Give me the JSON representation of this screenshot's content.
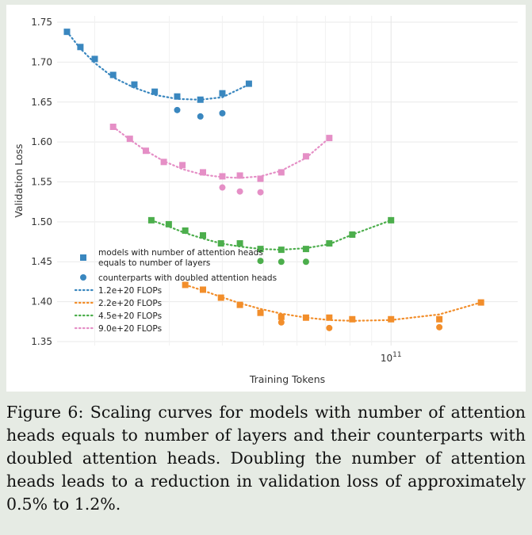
{
  "caption": "Figure 6: Scaling curves for models with number of attention heads equals to number of layers and their counterparts with doubled attention heads. Doubling the number of attention heads leads to a reduction in validation loss of approximately 0.5% to 1.2%.",
  "chart_data": {
    "type": "scatter",
    "xlabel": "Training Tokens",
    "ylabel": "Validation Loss",
    "x_scale": "log",
    "xlim": [
      16300000000.0,
      199000000000.0
    ],
    "ylim": [
      1.345,
      1.758
    ],
    "grid": true,
    "x_ticks": [
      {
        "value": 100000000000.0,
        "label": "10^11"
      }
    ],
    "y_ticks": [
      1.35,
      1.4,
      1.45,
      1.5,
      1.55,
      1.6,
      1.65,
      1.7,
      1.75
    ],
    "y_tick_labels": [
      "1.35",
      "1.40",
      "1.45",
      "1.50",
      "1.55",
      "1.60",
      "1.65",
      "1.70",
      "1.75"
    ],
    "legend": {
      "position": "lower-left",
      "entries": [
        {
          "label": "models with number of attention heads equals to number of layers",
          "lines": [
            "models with number of attention heads",
            "equals to number of layers"
          ],
          "kind": "square"
        },
        {
          "label": "counterparts with doubled attention heads",
          "lines": [
            "counterparts with doubled attention heads"
          ],
          "kind": "circle"
        },
        {
          "label": "1.2e+20 FLOPs",
          "lines": [
            "1.2e+20 FLOPs"
          ],
          "kind": "line",
          "series": 0
        },
        {
          "label": "2.2e+20 FLOPs",
          "lines": [
            "2.2e+20 FLOPs"
          ],
          "kind": "line",
          "series": 1
        },
        {
          "label": "4.5e+20 FLOPs",
          "lines": [
            "4.5e+20 FLOPs"
          ],
          "kind": "line",
          "series": 2
        },
        {
          "label": "9.0e+20 FLOPs",
          "lines": [
            "9.0e+20 FLOPs"
          ],
          "kind": "line",
          "series": 3
        }
      ]
    },
    "series": [
      {
        "name": "1.2e+20 FLOPs",
        "color": "#3a87bf",
        "squares": [
          [
            17200000000.0,
            1.738
          ],
          [
            18500000000.0,
            1.719
          ],
          [
            20000000000.0,
            1.704
          ],
          [
            22100000000.0,
            1.684
          ],
          [
            24800000000.0,
            1.672
          ],
          [
            27700000000.0,
            1.663
          ],
          [
            31300000000.0,
            1.657
          ],
          [
            35500000000.0,
            1.653
          ],
          [
            40000000000.0,
            1.661
          ],
          [
            46200000000.0,
            1.673
          ]
        ],
        "circles": [
          [
            31300000000.0,
            1.64
          ],
          [
            35500000000.0,
            1.632
          ],
          [
            40000000000.0,
            1.636
          ]
        ],
        "fit": [
          [
            17200000000.0,
            1.738
          ],
          [
            18500000000.0,
            1.717
          ],
          [
            20000000000.0,
            1.699
          ],
          [
            22100000000.0,
            1.681
          ],
          [
            24800000000.0,
            1.668
          ],
          [
            27700000000.0,
            1.659
          ],
          [
            31300000000.0,
            1.654
          ],
          [
            35500000000.0,
            1.653
          ],
          [
            40000000000.0,
            1.656
          ],
          [
            46200000000.0,
            1.672
          ]
        ]
      },
      {
        "name": "2.2e+20 FLOPs",
        "color": "#f28e2b",
        "squares": [
          [
            32700000000.0,
            1.421
          ],
          [
            36000000000.0,
            1.415
          ],
          [
            39700000000.0,
            1.405
          ],
          [
            44000000000.0,
            1.396
          ],
          [
            49200000000.0,
            1.386
          ],
          [
            55100000000.0,
            1.381
          ],
          [
            63000000000.0,
            1.38
          ],
          [
            71500000000.0,
            1.38
          ],
          [
            81000000000.0,
            1.378
          ],
          [
            100000000000.0,
            1.378
          ],
          [
            130000000000.0,
            1.378
          ],
          [
            163000000000.0,
            1.399
          ]
        ],
        "circles": [
          [
            55100000000.0,
            1.374
          ],
          [
            71500000000.0,
            1.367
          ],
          [
            130000000000.0,
            1.368
          ]
        ],
        "fit": [
          [
            32700000000.0,
            1.421
          ],
          [
            36000000000.0,
            1.414
          ],
          [
            39700000000.0,
            1.406
          ],
          [
            44000000000.0,
            1.398
          ],
          [
            49200000000.0,
            1.391
          ],
          [
            55100000000.0,
            1.385
          ],
          [
            63000000000.0,
            1.38
          ],
          [
            71500000000.0,
            1.377
          ],
          [
            81000000000.0,
            1.376
          ],
          [
            100000000000.0,
            1.377
          ],
          [
            130000000000.0,
            1.384
          ],
          [
            163000000000.0,
            1.399
          ]
        ]
      },
      {
        "name": "4.5e+20 FLOPs",
        "color": "#4cae4c",
        "squares": [
          [
            27200000000.0,
            1.502
          ],
          [
            29900000000.0,
            1.497
          ],
          [
            32700000000.0,
            1.489
          ],
          [
            36000000000.0,
            1.483
          ],
          [
            39700000000.0,
            1.473
          ],
          [
            44000000000.0,
            1.473
          ],
          [
            49200000000.0,
            1.466
          ],
          [
            55100000000.0,
            1.465
          ],
          [
            63000000000.0,
            1.466
          ],
          [
            71500000000.0,
            1.473
          ],
          [
            81000000000.0,
            1.484
          ],
          [
            100000000000.0,
            1.502
          ]
        ],
        "circles": [
          [
            49200000000.0,
            1.451
          ],
          [
            55100000000.0,
            1.45
          ],
          [
            63000000000.0,
            1.45
          ]
        ],
        "fit": [
          [
            27200000000.0,
            1.502
          ],
          [
            29900000000.0,
            1.494
          ],
          [
            32700000000.0,
            1.486
          ],
          [
            36000000000.0,
            1.479
          ],
          [
            39700000000.0,
            1.473
          ],
          [
            44000000000.0,
            1.469
          ],
          [
            49200000000.0,
            1.466
          ],
          [
            55100000000.0,
            1.465
          ],
          [
            63000000000.0,
            1.467
          ],
          [
            71500000000.0,
            1.472
          ],
          [
            81000000000.0,
            1.484
          ],
          [
            100000000000.0,
            1.502
          ]
        ]
      },
      {
        "name": "9.0e+20 FLOPs",
        "color": "#e58fc6",
        "squares": [
          [
            22100000000.0,
            1.619
          ],
          [
            24200000000.0,
            1.604
          ],
          [
            26400000000.0,
            1.589
          ],
          [
            29100000000.0,
            1.575
          ],
          [
            32200000000.0,
            1.571
          ],
          [
            36000000000.0,
            1.562
          ],
          [
            40000000000.0,
            1.557
          ],
          [
            44000000000.0,
            1.558
          ],
          [
            49200000000.0,
            1.554
          ],
          [
            55100000000.0,
            1.562
          ],
          [
            63000000000.0,
            1.582
          ],
          [
            71500000000.0,
            1.605
          ]
        ],
        "circles": [
          [
            40000000000.0,
            1.543
          ],
          [
            44000000000.0,
            1.538
          ],
          [
            49200000000.0,
            1.537
          ]
        ],
        "fit": [
          [
            22100000000.0,
            1.619
          ],
          [
            24200000000.0,
            1.603
          ],
          [
            26400000000.0,
            1.589
          ],
          [
            29100000000.0,
            1.576
          ],
          [
            32200000000.0,
            1.566
          ],
          [
            36000000000.0,
            1.559
          ],
          [
            40000000000.0,
            1.556
          ],
          [
            44000000000.0,
            1.555
          ],
          [
            49200000000.0,
            1.557
          ],
          [
            55100000000.0,
            1.564
          ],
          [
            63000000000.0,
            1.58
          ],
          [
            71500000000.0,
            1.605
          ]
        ]
      }
    ]
  }
}
